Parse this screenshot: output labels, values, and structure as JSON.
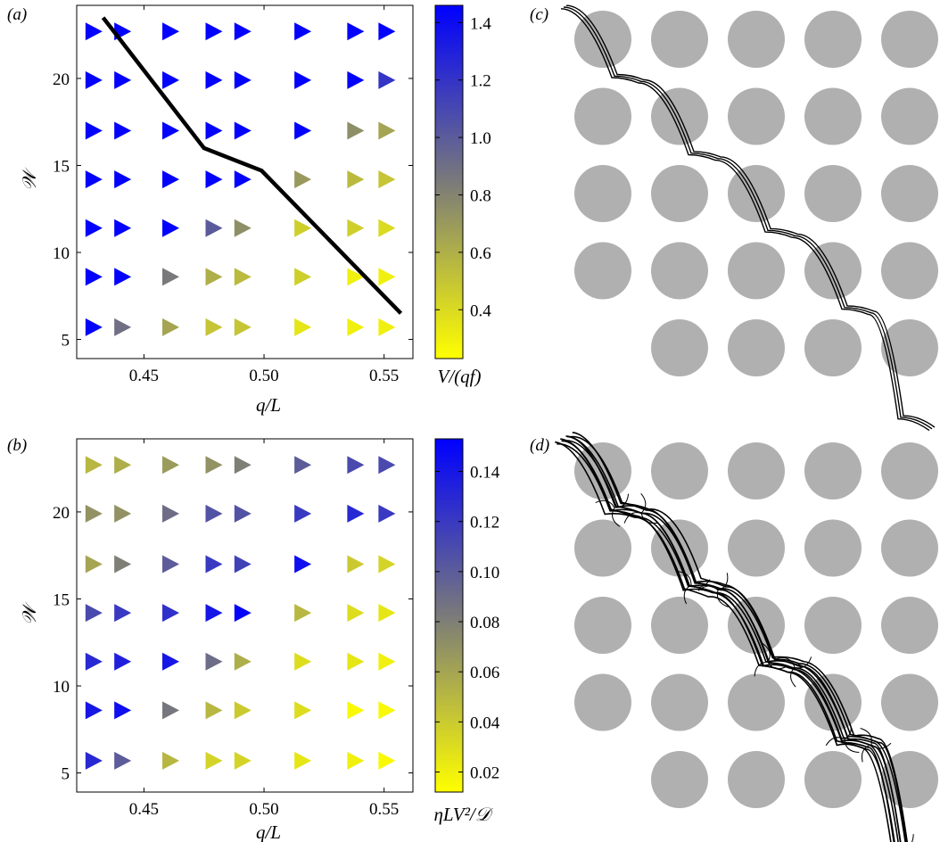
{
  "panels": {
    "a": "(a)",
    "b": "(b)",
    "c": "(c)",
    "d": "(d)"
  },
  "chart_data": [
    {
      "type": "scatter",
      "panel": "a",
      "marker": "right-pointing triangle",
      "xlabel": "q/L",
      "ylabel": "𝒲",
      "xticks": [
        "0.45",
        "0.50",
        "0.55"
      ],
      "xtick_values": [
        0.45,
        0.5,
        0.55
      ],
      "yticks": [
        "5",
        "10",
        "15",
        "20"
      ],
      "ytick_values": [
        5,
        10,
        15,
        20
      ],
      "xlim": [
        0.422,
        0.562
      ],
      "ylim": [
        3.9,
        24.2
      ],
      "x": [
        0.429,
        0.441,
        0.461,
        0.479,
        0.491,
        0.516,
        0.538,
        0.551
      ],
      "y": [
        5.7,
        8.6,
        11.4,
        14.2,
        17.0,
        19.9,
        22.7
      ],
      "values": [
        [
          1.45,
          1.45,
          1.45,
          1.45,
          1.45,
          1.45,
          1.45,
          1.45
        ],
        [
          1.45,
          1.45,
          1.45,
          1.45,
          1.45,
          1.45,
          1.45,
          1.2
        ],
        [
          1.45,
          1.45,
          1.45,
          1.45,
          1.45,
          1.45,
          0.75,
          0.65
        ],
        [
          1.45,
          1.45,
          1.45,
          1.45,
          1.45,
          0.7,
          0.55,
          0.5
        ],
        [
          1.45,
          1.45,
          1.45,
          1.0,
          0.75,
          0.45,
          0.45,
          0.4
        ],
        [
          1.45,
          1.45,
          0.85,
          0.6,
          0.55,
          0.45,
          0.3,
          0.3
        ],
        [
          1.45,
          0.9,
          0.65,
          0.5,
          0.5,
          0.35,
          0.3,
          0.3
        ]
      ],
      "boundary_line": {
        "x": [
          0.433,
          0.475,
          0.499,
          0.557
        ],
        "y": [
          23.5,
          16.0,
          14.7,
          6.5
        ]
      },
      "colorbar": {
        "label": "V/(qf)",
        "range": [
          0.23,
          1.46
        ],
        "ticks": [
          "0.4",
          "0.6",
          "0.8",
          "1.0",
          "1.2",
          "1.4"
        ],
        "tick_values": [
          0.4,
          0.6,
          0.8,
          1.0,
          1.2,
          1.4
        ],
        "colors": [
          "#ffff00",
          "#7a7a7a",
          "#0000ff"
        ]
      }
    },
    {
      "type": "scatter",
      "panel": "b",
      "marker": "right-pointing triangle",
      "xlabel": "q/L",
      "ylabel": "𝒲",
      "xticks": [
        "0.45",
        "0.50",
        "0.55"
      ],
      "xtick_values": [
        0.45,
        0.5,
        0.55
      ],
      "yticks": [
        "5",
        "10",
        "15",
        "20"
      ],
      "ytick_values": [
        5,
        10,
        15,
        20
      ],
      "xlim": [
        0.422,
        0.562
      ],
      "ylim": [
        3.9,
        24.2
      ],
      "x": [
        0.429,
        0.441,
        0.461,
        0.479,
        0.491,
        0.516,
        0.538,
        0.551
      ],
      "y": [
        5.7,
        8.6,
        11.4,
        14.2,
        17.0,
        19.9,
        22.7
      ],
      "values": [
        [
          0.05,
          0.055,
          0.065,
          0.07,
          0.08,
          0.1,
          0.11,
          0.11
        ],
        [
          0.07,
          0.07,
          0.09,
          0.105,
          0.105,
          0.12,
          0.13,
          0.12
        ],
        [
          0.06,
          0.08,
          0.1,
          0.12,
          0.115,
          0.145,
          0.04,
          0.035
        ],
        [
          0.11,
          0.12,
          0.125,
          0.14,
          0.15,
          0.05,
          0.03,
          0.025
        ],
        [
          0.13,
          0.135,
          0.14,
          0.09,
          0.055,
          0.03,
          0.025,
          0.02
        ],
        [
          0.14,
          0.145,
          0.085,
          0.05,
          0.04,
          0.03,
          0.015,
          0.015
        ],
        [
          0.13,
          0.1,
          0.05,
          0.035,
          0.035,
          0.025,
          0.02,
          0.015
        ]
      ],
      "colorbar": {
        "label": "ηLV²/𝒟",
        "range": [
          0.012,
          0.153
        ],
        "ticks": [
          "0.02",
          "0.04",
          "0.06",
          "0.08",
          "0.10",
          "0.12",
          "0.14"
        ],
        "tick_values": [
          0.02,
          0.04,
          0.06,
          0.08,
          0.1,
          0.12,
          0.14
        ],
        "colors": [
          "#ffff00",
          "#7a7a7a",
          "#0000ff"
        ]
      }
    }
  ],
  "illustrations": {
    "obstacle_color": "#b0b0b0",
    "filament_color": "#000000",
    "c": {
      "rows": [
        [
          1,
          1,
          1,
          1,
          1
        ],
        [
          1,
          1,
          1,
          1,
          1
        ],
        [
          1,
          1,
          1,
          1,
          1
        ],
        [
          1,
          1,
          1,
          1,
          1
        ],
        [
          0,
          1,
          1,
          1,
          1
        ]
      ],
      "strands": 3,
      "spread": 3,
      "bristles": false
    },
    "d": {
      "rows": [
        [
          1,
          1,
          1,
          1,
          1
        ],
        [
          1,
          1,
          1,
          1,
          1
        ],
        [
          1,
          1,
          1,
          1,
          1
        ],
        [
          1,
          1,
          1,
          1,
          1
        ],
        [
          0,
          1,
          1,
          1,
          1
        ]
      ],
      "strands": 9,
      "spread": 9,
      "bristles": true
    }
  }
}
